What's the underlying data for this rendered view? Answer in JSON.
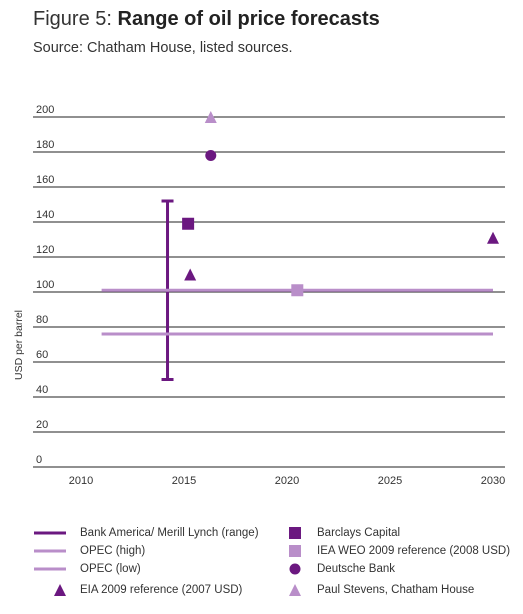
{
  "figure": {
    "label": "Figure 5:",
    "title": "Range of oil price forecasts",
    "source": "Source: Chatham House, listed sources."
  },
  "colors": {
    "dark_purple": "#6b1880",
    "light_purple": "#b98ec9",
    "grid": "#222222"
  },
  "chart_data": {
    "type": "scatter",
    "ylabel": "USD per barrel",
    "xlabel": "",
    "xlim": [
      2007.5,
      2030.5
    ],
    "ylim": [
      0,
      200
    ],
    "x_ticks": [
      2010,
      2015,
      2020,
      2025,
      2030
    ],
    "y_ticks": [
      0,
      20,
      40,
      60,
      80,
      100,
      120,
      140,
      160,
      180,
      200
    ],
    "grid": "horizontal",
    "legend_position": "bottom",
    "series": [
      {
        "name": "Bank America/ Merill Lynch (range)",
        "marker": "vertical-range",
        "color": "dark_purple",
        "points": [
          {
            "x": 2014.2,
            "y_low": 50,
            "y_high": 152
          }
        ]
      },
      {
        "name": "OPEC (high)",
        "marker": "horizontal-line",
        "color": "light_purple",
        "points": [
          {
            "x_start": 2011,
            "x_end": 2030,
            "y": 101
          }
        ]
      },
      {
        "name": "OPEC (low)",
        "marker": "horizontal-line",
        "color": "light_purple",
        "points": [
          {
            "x_start": 2011,
            "x_end": 2030,
            "y": 76
          }
        ]
      },
      {
        "name": "EIA 2009 reference (2007 USD)",
        "marker": "triangle",
        "color": "dark_purple",
        "points": [
          {
            "x": 2015.3,
            "y": 110
          },
          {
            "x": 2030,
            "y": 131
          }
        ]
      },
      {
        "name": "Barclays Capital",
        "marker": "square",
        "color": "dark_purple",
        "points": [
          {
            "x": 2015.2,
            "y": 139
          }
        ]
      },
      {
        "name": "IEA WEO 2009 reference (2008 USD)",
        "marker": "square",
        "color": "light_purple",
        "points": [
          {
            "x": 2020.5,
            "y": 101
          }
        ]
      },
      {
        "name": "Deutsche Bank",
        "marker": "circle",
        "color": "dark_purple",
        "points": [
          {
            "x": 2016.3,
            "y": 178
          }
        ]
      },
      {
        "name": "Paul Stevens, Chatham House",
        "marker": "triangle",
        "color": "light_purple",
        "points": [
          {
            "x": 2016.3,
            "y": 200
          }
        ]
      }
    ]
  }
}
